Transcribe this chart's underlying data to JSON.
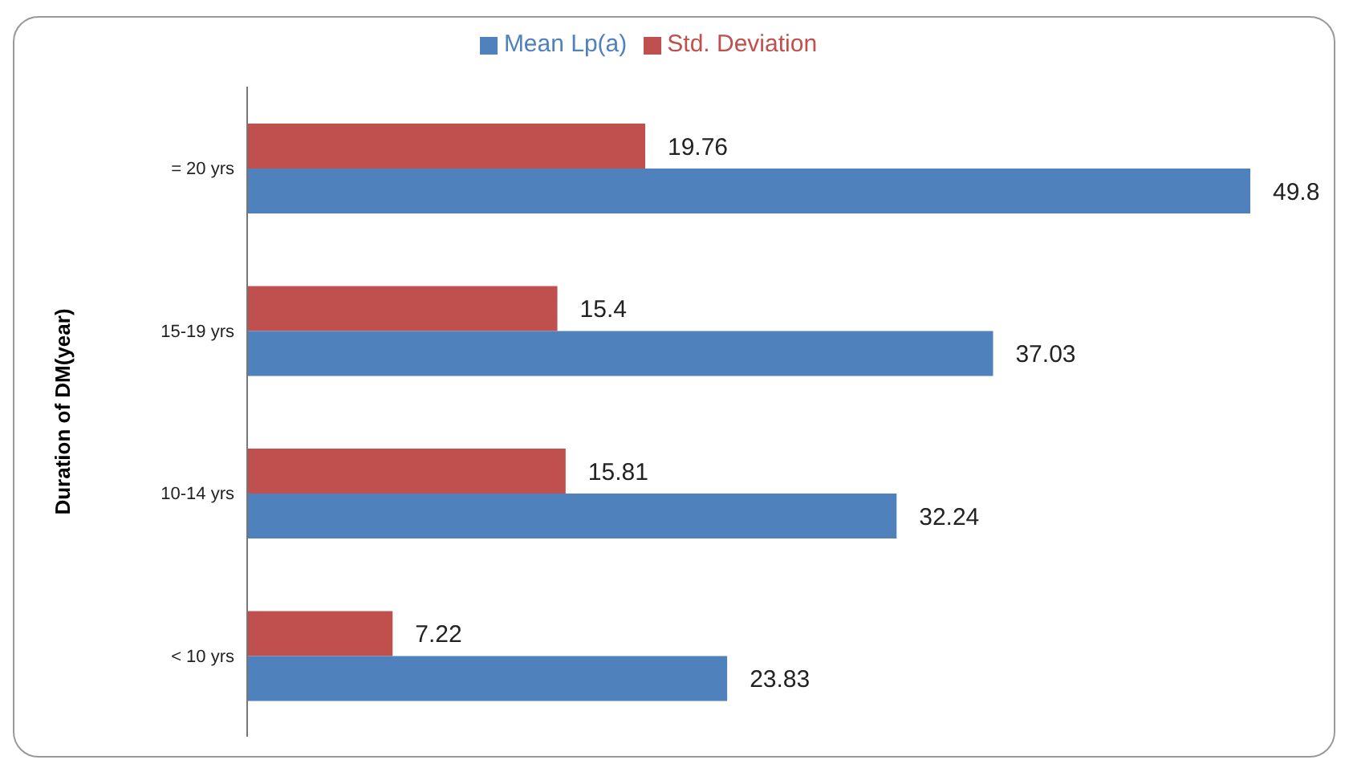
{
  "chart_data": {
    "type": "bar",
    "orientation": "horizontal",
    "ylabel": "Duration of DM(year)",
    "categories": [
      "= 20 yrs",
      "15-19 yrs",
      "10-14 yrs",
      "< 10 yrs"
    ],
    "series": [
      {
        "name": "Std. Deviation",
        "color": "#c0504d",
        "values": [
          19.76,
          15.4,
          15.81,
          7.22
        ]
      },
      {
        "name": "Mean Lp(a)",
        "color": "#4f81bd",
        "values": [
          49.8,
          37.03,
          32.24,
          23.83
        ]
      }
    ],
    "data_labels": true,
    "legend": "top",
    "grid": false
  }
}
